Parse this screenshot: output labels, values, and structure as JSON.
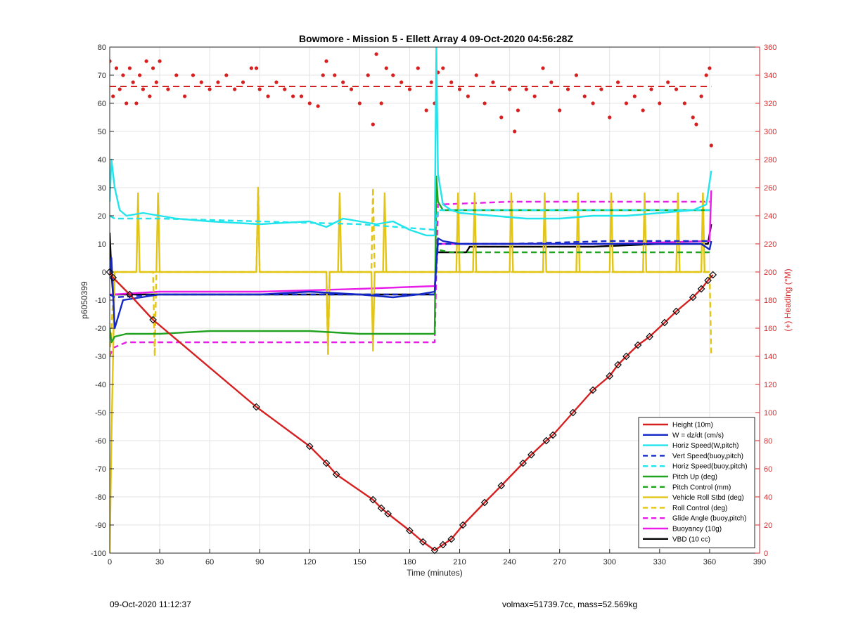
{
  "footer": {
    "left": "09-Oct-2020 11:12:37",
    "right": "volmax=51739.7cc, mass=52.569kg"
  },
  "chart_data": {
    "type": "line",
    "title": "Bowmore - Mission 5 - Ellett Array 4 09-Oct-2020 04:56:28Z",
    "xlabel": "Time (minutes)",
    "ylabel": "p6050399",
    "y2label": "(+) Heading (°M)",
    "xlim": [
      0,
      390
    ],
    "ylim": [
      -100,
      80
    ],
    "y2lim": [
      0,
      360
    ],
    "xticks": [
      0,
      30,
      60,
      90,
      120,
      150,
      180,
      210,
      240,
      270,
      300,
      330,
      360,
      390
    ],
    "yticks": [
      -100,
      -90,
      -80,
      -70,
      -60,
      -50,
      -40,
      -30,
      -20,
      -10,
      0,
      10,
      20,
      30,
      40,
      50,
      60,
      70,
      80
    ],
    "y2ticks": [
      0,
      20,
      40,
      60,
      80,
      100,
      120,
      140,
      160,
      180,
      200,
      220,
      240,
      260,
      280,
      300,
      320,
      340,
      360
    ],
    "grid": true,
    "legend_position": "bottom-right",
    "series": [
      {
        "name": "Height (10m)",
        "color": "#d62020",
        "style": "solid",
        "markers": "diamond",
        "x": [
          0,
          2,
          12,
          26,
          88,
          120,
          130,
          136,
          158,
          163,
          167,
          180,
          188,
          195,
          200,
          205,
          212,
          225,
          235,
          248,
          253,
          262,
          266,
          278,
          290,
          300,
          305,
          310,
          317,
          324,
          333,
          340,
          350,
          355,
          359,
          362
        ],
        "y": [
          0,
          -2,
          -8,
          -17,
          -48,
          -62,
          -68,
          -72,
          -81,
          -84,
          -86,
          -92,
          -96,
          -99,
          -97,
          -95,
          -90,
          -82,
          -76,
          -68,
          -65,
          -60,
          -58,
          -50,
          -42,
          -37,
          -33,
          -30,
          -26,
          -23,
          -18,
          -14,
          -9,
          -6,
          -3,
          -1
        ]
      },
      {
        "name": "W = dz/dt (cm/s)",
        "color": "#1428c8",
        "style": "solid",
        "x": [
          0,
          1,
          3,
          8,
          30,
          60,
          90,
          120,
          150,
          170,
          185,
          195,
          197,
          200,
          210,
          240,
          270,
          300,
          330,
          355,
          360,
          361
        ],
        "y": [
          0,
          5,
          -20,
          -10,
          -8,
          -8,
          -8,
          -7,
          -8,
          -9,
          -8,
          -7,
          12,
          11,
          10,
          10,
          10,
          10,
          10,
          10,
          8,
          11
        ]
      },
      {
        "name": "Horiz Speed(W,pitch)",
        "color": "#22e4ec",
        "style": "solid",
        "x": [
          0,
          1,
          3,
          6,
          10,
          20,
          40,
          60,
          90,
          120,
          130,
          140,
          160,
          170,
          180,
          190,
          195,
          196,
          197,
          200,
          205,
          210,
          230,
          250,
          270,
          290,
          310,
          330,
          350,
          358,
          361
        ],
        "y": [
          25,
          40,
          30,
          22,
          20,
          21,
          19,
          18,
          17,
          18,
          16,
          19,
          17,
          18,
          15,
          13,
          13,
          80,
          35,
          24,
          22,
          21,
          20,
          19,
          19,
          20,
          20,
          21,
          22,
          24,
          36
        ]
      },
      {
        "name": "Vert Speed(buoy,pitch)",
        "color": "#1428c8",
        "style": "dashed",
        "x": [
          0,
          3,
          30,
          90,
          150,
          195,
          197,
          240,
          300,
          360
        ],
        "y": [
          -8,
          -9,
          -8,
          -8,
          -8,
          -8,
          10,
          10,
          11,
          11
        ]
      },
      {
        "name": "Horiz Speed(buoy,pitch)",
        "color": "#22e4ec",
        "style": "dashed",
        "x": [
          0,
          3,
          30,
          90,
          150,
          195,
          197,
          240,
          300,
          360
        ],
        "y": [
          20,
          19,
          19,
          18,
          17,
          15,
          22,
          22,
          22,
          22
        ]
      },
      {
        "name": "Pitch Up (deg)",
        "color": "#21a321",
        "style": "solid",
        "x": [
          0,
          1,
          3,
          10,
          30,
          60,
          90,
          120,
          150,
          180,
          195,
          196,
          197,
          200,
          210,
          240,
          270,
          300,
          330,
          360
        ],
        "y": [
          -20,
          -25,
          -23,
          -22,
          -22,
          -21,
          -21,
          -21,
          -22,
          -22,
          -22,
          34,
          25,
          22,
          22,
          22,
          22,
          22,
          22,
          22
        ]
      },
      {
        "name": "Pitch Control (mm)",
        "color": "#21a321",
        "style": "dashed",
        "x": [
          195,
          196,
          205,
          360
        ],
        "y": [
          -7,
          8,
          7,
          7
        ]
      },
      {
        "name": "Vehicle Roll Stbd (deg)",
        "color": "#e3c516",
        "style": "solid",
        "x": [
          0,
          1,
          3,
          10,
          16,
          17,
          18,
          28,
          29,
          30,
          88,
          89,
          90,
          130,
          131,
          132,
          137,
          138,
          139,
          157,
          158,
          159,
          164,
          165,
          166,
          170,
          195,
          200,
          208,
          209,
          210,
          218,
          219,
          220,
          240,
          241,
          242,
          260,
          261,
          262,
          280,
          281,
          282,
          300,
          301,
          302,
          320,
          321,
          322,
          340,
          341,
          342,
          355,
          356,
          357,
          360
        ],
        "y": [
          -100,
          -60,
          0,
          0,
          0,
          28,
          0,
          0,
          28,
          0,
          0,
          28,
          0,
          0,
          -28,
          0,
          0,
          28,
          0,
          0,
          -28,
          0,
          0,
          28,
          0,
          0,
          0,
          0,
          0,
          28,
          0,
          0,
          28,
          0,
          0,
          28,
          0,
          0,
          28,
          0,
          0,
          28,
          0,
          0,
          28,
          0,
          0,
          28,
          0,
          0,
          28,
          0,
          0,
          28,
          0,
          0
        ]
      },
      {
        "name": "Roll Control (deg)",
        "color": "#e3c516",
        "style": "dashed",
        "x": [
          0,
          3,
          10,
          26,
          27,
          28,
          88,
          89,
          90,
          130,
          131,
          132,
          157,
          158,
          159,
          196,
          197,
          360,
          361
        ],
        "y": [
          -30,
          0,
          0,
          0,
          -30,
          0,
          0,
          30,
          0,
          0,
          -30,
          0,
          0,
          30,
          0,
          0,
          0,
          0,
          -30
        ]
      },
      {
        "name": "Glide Angle (buoy,pitch)",
        "color": "#e81ee8",
        "style": "dashed",
        "x": [
          0,
          2,
          10,
          30,
          90,
          150,
          195,
          197,
          240,
          300,
          360
        ],
        "y": [
          -30,
          -27,
          -25,
          -25,
          -25,
          -25,
          -25,
          24,
          25,
          25,
          25
        ]
      },
      {
        "name": "Buoyancy (10g)",
        "color": "#e81ee8",
        "style": "solid",
        "x": [
          0,
          2,
          30,
          90,
          150,
          195,
          197,
          240,
          300,
          360,
          361
        ],
        "y": [
          -8,
          -8,
          -7,
          -7,
          -6,
          -5,
          10,
          10,
          10,
          11,
          29
        ]
      },
      {
        "name": "VBD (10 cc)",
        "color": "#000000",
        "style": "solid",
        "x": [
          0,
          1,
          2,
          195,
          196,
          200,
          214,
          216,
          290,
          330,
          359,
          361
        ],
        "y": [
          14,
          0,
          -8,
          -8,
          7,
          7,
          7,
          9,
          9,
          10,
          10,
          17
        ]
      }
    ],
    "heading_series": {
      "axis": "right",
      "color": "#d62020",
      "style": "markers",
      "mean": 332,
      "x": [
        0,
        2,
        4,
        6,
        8,
        10,
        12,
        14,
        16,
        18,
        20,
        22,
        24,
        26,
        28,
        30,
        35,
        40,
        45,
        50,
        55,
        60,
        65,
        70,
        75,
        80,
        85,
        88,
        90,
        95,
        100,
        105,
        110,
        115,
        120,
        125,
        128,
        130,
        135,
        140,
        145,
        150,
        155,
        158,
        160,
        163,
        166,
        170,
        175,
        180,
        185,
        190,
        193,
        195,
        197,
        200,
        205,
        210,
        215,
        220,
        225,
        230,
        235,
        240,
        243,
        245,
        250,
        255,
        260,
        265,
        270,
        275,
        280,
        285,
        290,
        295,
        300,
        305,
        310,
        315,
        320,
        325,
        330,
        335,
        340,
        345,
        350,
        352,
        355,
        358,
        360,
        361
      ],
      "y": [
        350,
        325,
        345,
        330,
        340,
        320,
        345,
        335,
        320,
        340,
        330,
        350,
        325,
        345,
        335,
        350,
        330,
        340,
        325,
        340,
        335,
        330,
        335,
        340,
        330,
        335,
        345,
        345,
        330,
        325,
        335,
        330,
        325,
        325,
        320,
        318,
        340,
        350,
        340,
        335,
        330,
        320,
        340,
        305,
        355,
        320,
        345,
        340,
        335,
        330,
        345,
        315,
        335,
        320,
        342,
        345,
        335,
        330,
        325,
        340,
        320,
        335,
        310,
        330,
        300,
        315,
        330,
        325,
        345,
        335,
        315,
        330,
        340,
        325,
        320,
        330,
        310,
        335,
        320,
        325,
        315,
        330,
        320,
        335,
        330,
        320,
        310,
        305,
        325,
        340,
        345,
        290
      ]
    }
  }
}
